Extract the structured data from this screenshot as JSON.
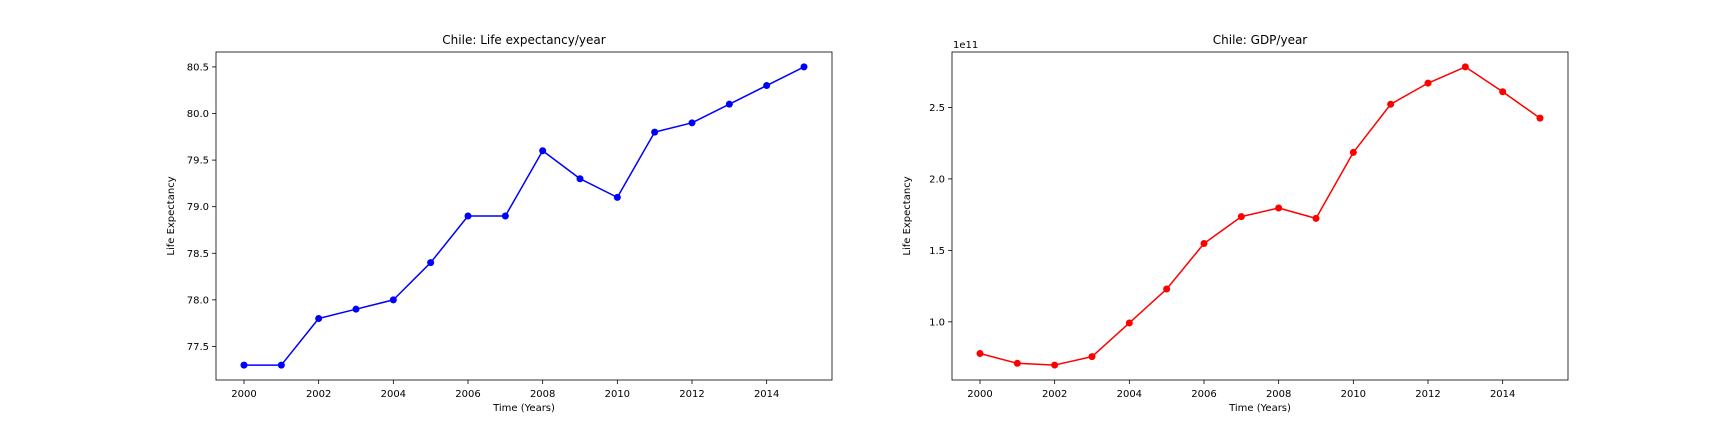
{
  "chart_data": [
    {
      "type": "line",
      "title": "Chile: Life expectancy/year",
      "xlabel": "Time (Years)",
      "ylabel": "Life Expectancy",
      "x": [
        2000,
        2001,
        2002,
        2003,
        2004,
        2005,
        2006,
        2007,
        2008,
        2009,
        2010,
        2011,
        2012,
        2013,
        2014,
        2015
      ],
      "series": [
        {
          "values": [
            77.3,
            77.3,
            77.8,
            77.9,
            78.0,
            78.4,
            78.9,
            78.9,
            79.6,
            79.3,
            79.1,
            79.8,
            79.9,
            80.1,
            80.3,
            80.5
          ],
          "color": "#0000ff",
          "marker": "circle"
        }
      ],
      "xlim": [
        1999.25,
        2015.75
      ],
      "ylim": [
        77.14,
        80.66
      ],
      "x_ticks": [
        2000,
        2002,
        2004,
        2006,
        2008,
        2010,
        2012,
        2014
      ],
      "y_ticks": [
        77.5,
        78.0,
        78.5,
        79.0,
        79.5,
        80.0,
        80.5
      ],
      "x_tick_labels": [
        "2000",
        "2002",
        "2004",
        "2006",
        "2008",
        "2010",
        "2012",
        "2014"
      ],
      "y_tick_labels": [
        "77.5",
        "78.0",
        "78.5",
        "79.0",
        "79.5",
        "80.0",
        "80.5"
      ],
      "offset_label": "",
      "grid": false
    },
    {
      "type": "line",
      "title": "Chile: GDP/year",
      "xlabel": "Time (Years)",
      "ylabel": "Life Expectancy",
      "x": [
        2000,
        2001,
        2002,
        2003,
        2004,
        2005,
        2006,
        2007,
        2008,
        2009,
        2010,
        2011,
        2012,
        2013,
        2014,
        2015
      ],
      "series": [
        {
          "values": [
            77860000000,
            70980000000,
            69740000000,
            75640000000,
            99210000000,
            122960000000,
            154790000000,
            173610000000,
            179640000000,
            172390000000,
            218540000000,
            252250000000,
            267020000000,
            278380000000,
            260990000000,
            242520000000
          ],
          "color": "#ff0000",
          "marker": "circle"
        }
      ],
      "xlim": [
        1999.25,
        2015.75
      ],
      "ylim": [
        59300000000,
        288800000000
      ],
      "x_ticks": [
        2000,
        2002,
        2004,
        2006,
        2008,
        2010,
        2012,
        2014
      ],
      "y_ticks": [
        100000000000,
        150000000000,
        200000000000,
        250000000000
      ],
      "x_tick_labels": [
        "2000",
        "2002",
        "2004",
        "2006",
        "2008",
        "2010",
        "2012",
        "2014"
      ],
      "y_tick_labels": [
        "1.0",
        "1.5",
        "2.0",
        "2.5"
      ],
      "offset_label": "1e11",
      "grid": false
    }
  ]
}
